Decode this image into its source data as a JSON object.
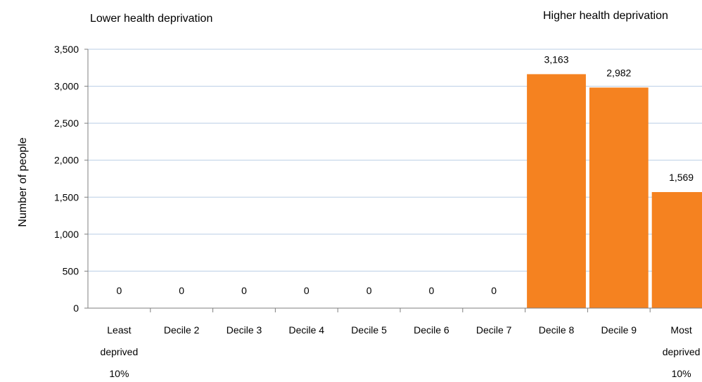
{
  "chart_data": {
    "type": "bar",
    "annotations": {
      "left": "Lower health deprivation",
      "right": "Higher health deprivation"
    },
    "ylabel": "Number of people",
    "xlabel": "",
    "ylim": [
      0,
      3500
    ],
    "yticks": [
      0,
      500,
      1000,
      1500,
      2000,
      2500,
      3000,
      3500
    ],
    "ytick_labels": [
      "0",
      "500",
      "1,000",
      "1,500",
      "2,000",
      "2,500",
      "3,000",
      "3,500"
    ],
    "grid": true,
    "legend": "none",
    "bar_color": "#F58220",
    "categories": [
      [
        "Least",
        "deprived",
        "10%"
      ],
      [
        "Decile 2"
      ],
      [
        "Decile 3"
      ],
      [
        "Decile 4"
      ],
      [
        "Decile 5"
      ],
      [
        "Decile 6"
      ],
      [
        "Decile 7"
      ],
      [
        "Decile 8"
      ],
      [
        "Decile 9"
      ],
      [
        "Most",
        "deprived",
        "10%"
      ]
    ],
    "values": [
      0,
      0,
      0,
      0,
      0,
      0,
      0,
      3163,
      2982,
      1569
    ],
    "value_labels": [
      "0",
      "0",
      "0",
      "0",
      "0",
      "0",
      "0",
      "3,163",
      "2,982",
      "1,569"
    ]
  }
}
